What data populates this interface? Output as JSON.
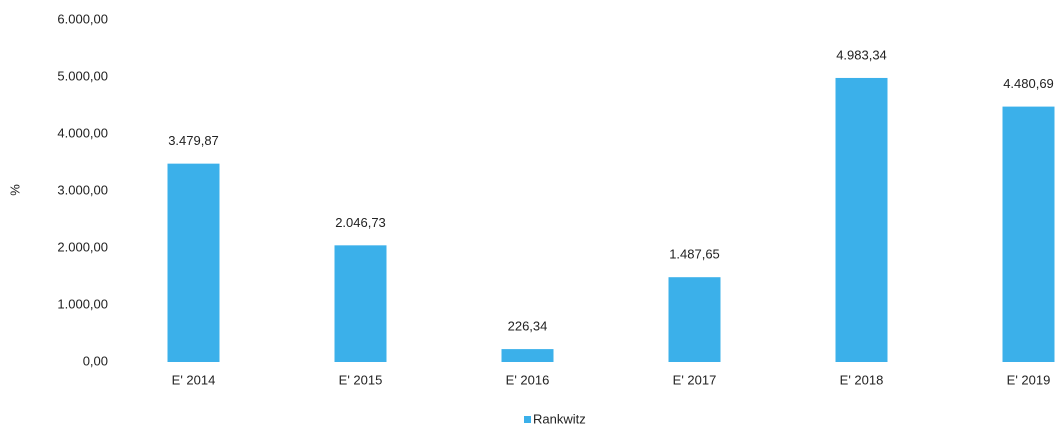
{
  "chart_data": {
    "type": "bar",
    "y_label": "%",
    "categories": [
      "E' 2014",
      "E' 2015",
      "E' 2016",
      "E' 2017",
      "E' 2018",
      "E' 2019"
    ],
    "series": [
      {
        "name": "Rankwitz",
        "color": "#3bb0ea",
        "values": [
          3479.87,
          2046.73,
          226.34,
          1487.65,
          4983.34,
          4480.69
        ],
        "value_labels": [
          "3.479,87",
          "2.046,73",
          "226,34",
          "1.487,65",
          "4.983,34",
          "4.480,69"
        ]
      }
    ],
    "ylim": [
      0,
      6000
    ],
    "yticks": [
      {
        "value": 0,
        "label": "0,00"
      },
      {
        "value": 1000,
        "label": "1.000,00"
      },
      {
        "value": 2000,
        "label": "2.000,00"
      },
      {
        "value": 3000,
        "label": "3.000,00"
      },
      {
        "value": 4000,
        "label": "4.000,00"
      },
      {
        "value": 5000,
        "label": "5.000,00"
      },
      {
        "value": 6000,
        "label": "6.000,00"
      }
    ],
    "grid": false,
    "legend": "bottom"
  }
}
